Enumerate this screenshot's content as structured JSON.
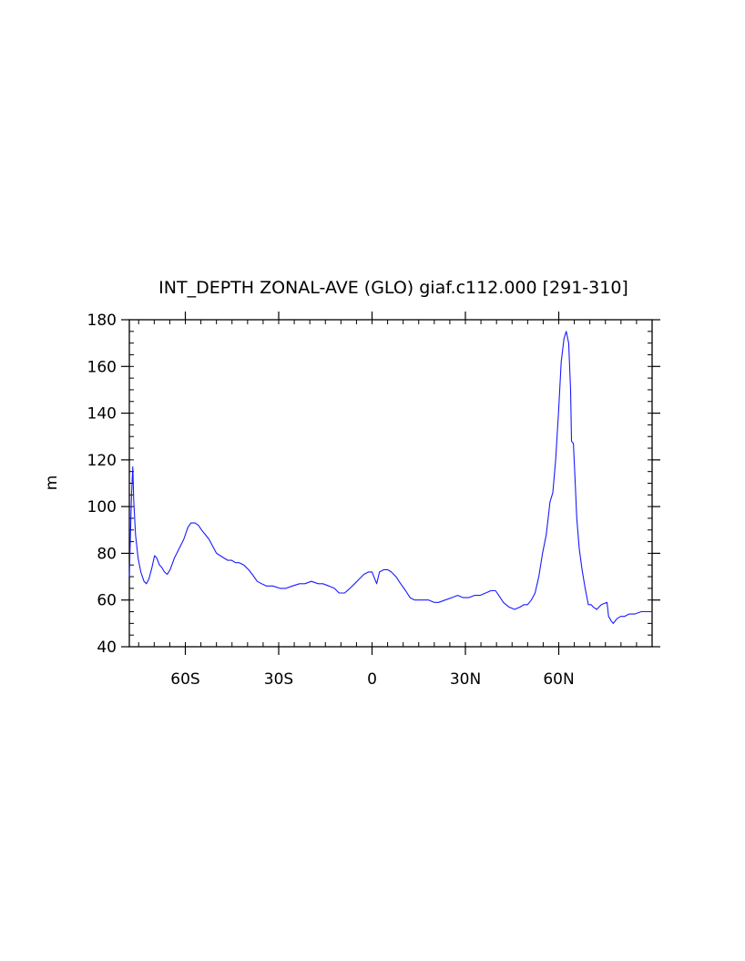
{
  "chart_data": {
    "type": "line",
    "title": "INT_DEPTH ZONAL-AVE (GLO) giaf.c112.000 [291-310]",
    "xlabel": "",
    "ylabel": "m",
    "xlim": [
      -78,
      90
    ],
    "ylim": [
      40,
      180
    ],
    "x_ticks": [
      {
        "value": -60,
        "label": "60S"
      },
      {
        "value": -30,
        "label": "30S"
      },
      {
        "value": 0,
        "label": "0"
      },
      {
        "value": 30,
        "label": "30N"
      },
      {
        "value": 60,
        "label": "60N"
      }
    ],
    "y_ticks": [
      {
        "value": 40,
        "label": "40"
      },
      {
        "value": 60,
        "label": "60"
      },
      {
        "value": 80,
        "label": "80"
      },
      {
        "value": 100,
        "label": "100"
      },
      {
        "value": 120,
        "label": "120"
      },
      {
        "value": 140,
        "label": "140"
      },
      {
        "value": 160,
        "label": "160"
      },
      {
        "value": 180,
        "label": "180"
      }
    ],
    "y_minor_step": 5,
    "x_minor_step": 5,
    "grid": false,
    "legend": "none",
    "line_color": "#1a1aff",
    "series": [
      {
        "x": [
          -78,
          -77.3,
          -76.9,
          -76.6,
          -76,
          -75.2,
          -74.3,
          -73.3,
          -72.5,
          -71.7,
          -70.7,
          -69.9,
          -69.2,
          -68.3,
          -67.6,
          -66.7,
          -65.8,
          -64.9,
          -63.5,
          -62,
          -60.5,
          -59.2,
          -58.2,
          -56.9,
          -55.8,
          -54.8,
          -53.6,
          -52.4,
          -51.2,
          -50,
          -48.8,
          -47.6,
          -46.4,
          -45.1,
          -43.9,
          -42.7,
          -41.2,
          -39.7,
          -38.5,
          -36.9,
          -35.5,
          -34,
          -31.9,
          -29.6,
          -27.7,
          -25.6,
          -23.3,
          -21.6,
          -19.5,
          -17.3,
          -15.8,
          -13.9,
          -12.1,
          -10.6,
          -8.8,
          -7.1,
          -5.6,
          -4.1,
          -2.6,
          -1.1,
          0,
          0.6,
          1.5,
          2.4,
          3.8,
          5,
          6.2,
          7.7,
          9.2,
          10.8,
          12.2,
          13.7,
          15.2,
          16.6,
          18.2,
          19.9,
          21.4,
          23.5,
          25.6,
          27.5,
          29.3,
          31.1,
          32.9,
          34.7,
          36.5,
          38.2,
          39.7,
          40.7,
          42.2,
          44,
          45.8,
          47.6,
          48.8,
          50,
          51.2,
          52.4,
          53.6,
          54.8,
          56,
          57.2,
          58.1,
          59,
          59.9,
          60.8,
          61.7,
          62.4,
          63.2,
          63.8,
          64.1,
          64.7,
          65.3,
          65.8,
          66.6,
          67.5,
          68.5,
          69.5,
          70.4,
          71.1,
          72.2,
          73.7,
          75.5,
          76,
          76.9,
          77.5,
          78.7,
          79.9,
          81.1,
          82.6,
          84.4,
          86.5,
          88.6,
          90
        ],
        "y": [
          70,
          105,
          117,
          103,
          88,
          78,
          72,
          68,
          67,
          69,
          74,
          79,
          78,
          75,
          74,
          72,
          71,
          73,
          78,
          82,
          86,
          91,
          93,
          93,
          92,
          90,
          88,
          86,
          83,
          80,
          79,
          78,
          77,
          77,
          76,
          76,
          75,
          73,
          71,
          68,
          67,
          66,
          66,
          65,
          65,
          66,
          67,
          67,
          68,
          67,
          67,
          66,
          65,
          63,
          63,
          65,
          67,
          69,
          71,
          72,
          72,
          70,
          67,
          72,
          73,
          73,
          72,
          70,
          67,
          64,
          61,
          60,
          60,
          60,
          60,
          59,
          59,
          60,
          61,
          62,
          61,
          61,
          62,
          62,
          63,
          64,
          64,
          62,
          59,
          57,
          56,
          57,
          58,
          58,
          60,
          63,
          70,
          80,
          88,
          102,
          106,
          120,
          140,
          162,
          172,
          175,
          170,
          150,
          128,
          127,
          110,
          95,
          82,
          73,
          65,
          58,
          58,
          57,
          56,
          58,
          59,
          53,
          51,
          50,
          52,
          53,
          53,
          54,
          54,
          55,
          55,
          55
        ]
      }
    ]
  }
}
